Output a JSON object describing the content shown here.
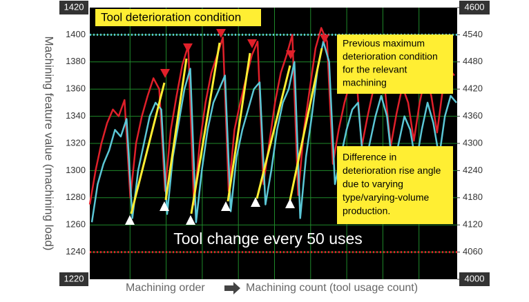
{
  "chart_data": {
    "type": "line",
    "y_label": "Machining feature value (machining load)",
    "x_label_left": "Machining order",
    "x_label_right": "Machining count (tool usage count)",
    "ylim": [
      1220,
      1420
    ],
    "yticks": [
      1220,
      1240,
      1260,
      1280,
      1300,
      1320,
      1340,
      1360,
      1380,
      1400,
      1420
    ],
    "y2lim": [
      4000,
      4600
    ],
    "y2ticks": [
      4000,
      4060,
      4120,
      4180,
      4240,
      4300,
      4360,
      4420,
      4480,
      4540,
      4600
    ],
    "grid": true,
    "series": [
      {
        "color": "#e0202a",
        "values": [
          1275,
          1300,
          1320,
          1335,
          1345,
          1340,
          1352,
          1280,
          1320,
          1340,
          1355,
          1368,
          1360,
          1285,
          1330,
          1355,
          1378,
          1392,
          1275,
          1320,
          1350,
          1372,
          1385,
          1398,
          1285,
          1330,
          1350,
          1368,
          1385,
          1395,
          1290,
          1320,
          1350,
          1372,
          1385,
          1400,
          1282,
          1330,
          1360,
          1390,
          1405,
          1395,
          1305,
          1330,
          1350,
          1365,
          1372,
          1318,
          1340,
          1360,
          1375,
          1360,
          1318,
          1342,
          1362,
          1350,
          1322,
          1350,
          1370,
          1355,
          1328,
          1360,
          1375,
          1370
        ]
      },
      {
        "color": "#5bc7d6",
        "values": [
          1262,
          1290,
          1305,
          1315,
          1330,
          1325,
          1338,
          1265,
          1300,
          1320,
          1340,
          1350,
          1345,
          1268,
          1310,
          1335,
          1360,
          1375,
          1262,
          1300,
          1330,
          1350,
          1360,
          1370,
          1270,
          1310,
          1330,
          1345,
          1360,
          1365,
          1275,
          1300,
          1330,
          1350,
          1360,
          1380,
          1265,
          1310,
          1340,
          1375,
          1395,
          1380,
          1290,
          1310,
          1330,
          1345,
          1350,
          1300,
          1320,
          1340,
          1355,
          1340,
          1300,
          1320,
          1340,
          1330,
          1305,
          1330,
          1350,
          1335,
          1310,
          1340,
          1355,
          1350
        ]
      }
    ],
    "reference_lines": [
      {
        "value": 1400,
        "color": "#5bc7d6"
      },
      {
        "value": 1240,
        "color": "#e0202a"
      }
    ],
    "annotations": {
      "deterioration": "Tool deterioration condition",
      "previous_max": [
        "Previous maximum",
        "deterioration condition",
        "for the relevant",
        "machining"
      ],
      "difference": [
        "Difference in",
        "deterioration rise angle",
        "due to varying",
        "type/varying-volume",
        "production."
      ],
      "tool_change": "Tool change every 50 uses"
    }
  }
}
